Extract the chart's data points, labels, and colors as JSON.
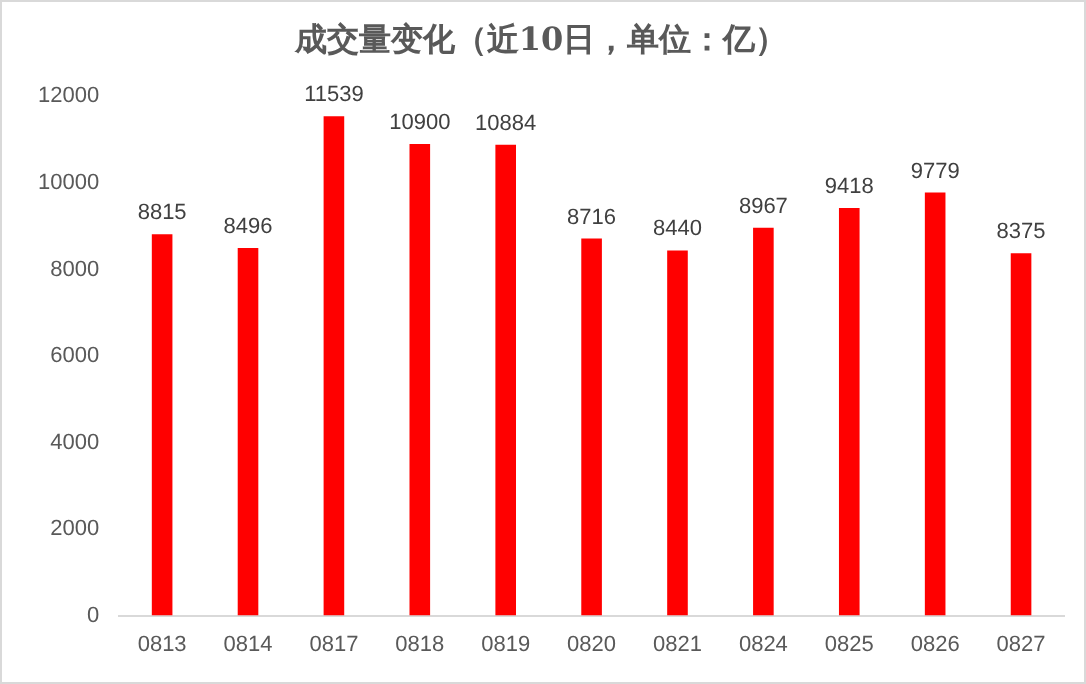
{
  "chart_data": {
    "type": "bar",
    "title": "成交量变化（近10日，单位：亿）",
    "categories": [
      "0813",
      "0814",
      "0817",
      "0818",
      "0819",
      "0820",
      "0821",
      "0824",
      "0825",
      "0826",
      "0827"
    ],
    "values": [
      8815,
      8496,
      11539,
      10900,
      10884,
      8716,
      8440,
      8967,
      9418,
      9779,
      8375
    ],
    "color": "#ff0000",
    "ylim": [
      0,
      12000
    ],
    "yticks": [
      0,
      2000,
      4000,
      6000,
      8000,
      10000,
      12000
    ],
    "grid": false,
    "legend": false,
    "data_labels": true
  }
}
